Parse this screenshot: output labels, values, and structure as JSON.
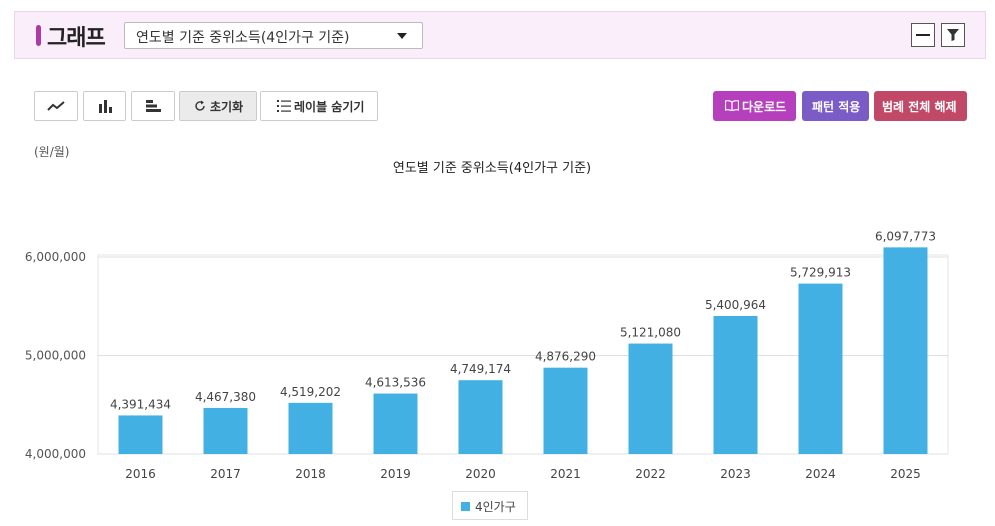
{
  "header": {
    "title": "그래프",
    "select_value": "연도별 기준 중위소득(4인가구 기준)",
    "minimize_icon": "minus-icon",
    "filter_icon": "funnel-icon"
  },
  "toolbar": {
    "line_icon": "line-chart-icon",
    "bar_icon": "bar-chart-icon",
    "hbar_icon": "horizontal-bar-chart-icon",
    "reset_label": "초기화",
    "hide_labels_label": "레이블 숨기기",
    "download_label": "다운로드",
    "pattern_label": "패턴 적용",
    "legend_clear_label": "범례 전체 해제",
    "colors": {
      "download": "#b53fbd",
      "pattern": "#7b5cc7",
      "legend_clear": "#c24868",
      "bar": "#42b0e3"
    }
  },
  "chart_data": {
    "type": "bar",
    "title": "연도별 기준 중위소득(4인가구 기준)",
    "unit": "(원/월)",
    "categories": [
      "2016",
      "2017",
      "2018",
      "2019",
      "2020",
      "2021",
      "2022",
      "2023",
      "2024",
      "2025"
    ],
    "series": [
      {
        "name": "4인가구",
        "values": [
          4391434,
          4467380,
          4519202,
          4613536,
          4749174,
          4876290,
          5121080,
          5400964,
          5729913,
          6097773
        ],
        "labels": [
          "4,391,434",
          "4,467,380",
          "4,519,202",
          "4,613,536",
          "4,749,174",
          "4,876,290",
          "5,121,080",
          "5,400,964",
          "5,729,913",
          "6,097,773"
        ]
      }
    ],
    "yticks": [
      4000000,
      5000000,
      6000000
    ],
    "ytick_labels": [
      "4,000,000",
      "5,000,000",
      "6,000,000"
    ],
    "ylim": [
      4000000,
      6200000
    ],
    "grid": true,
    "legend": "bottom-center"
  }
}
